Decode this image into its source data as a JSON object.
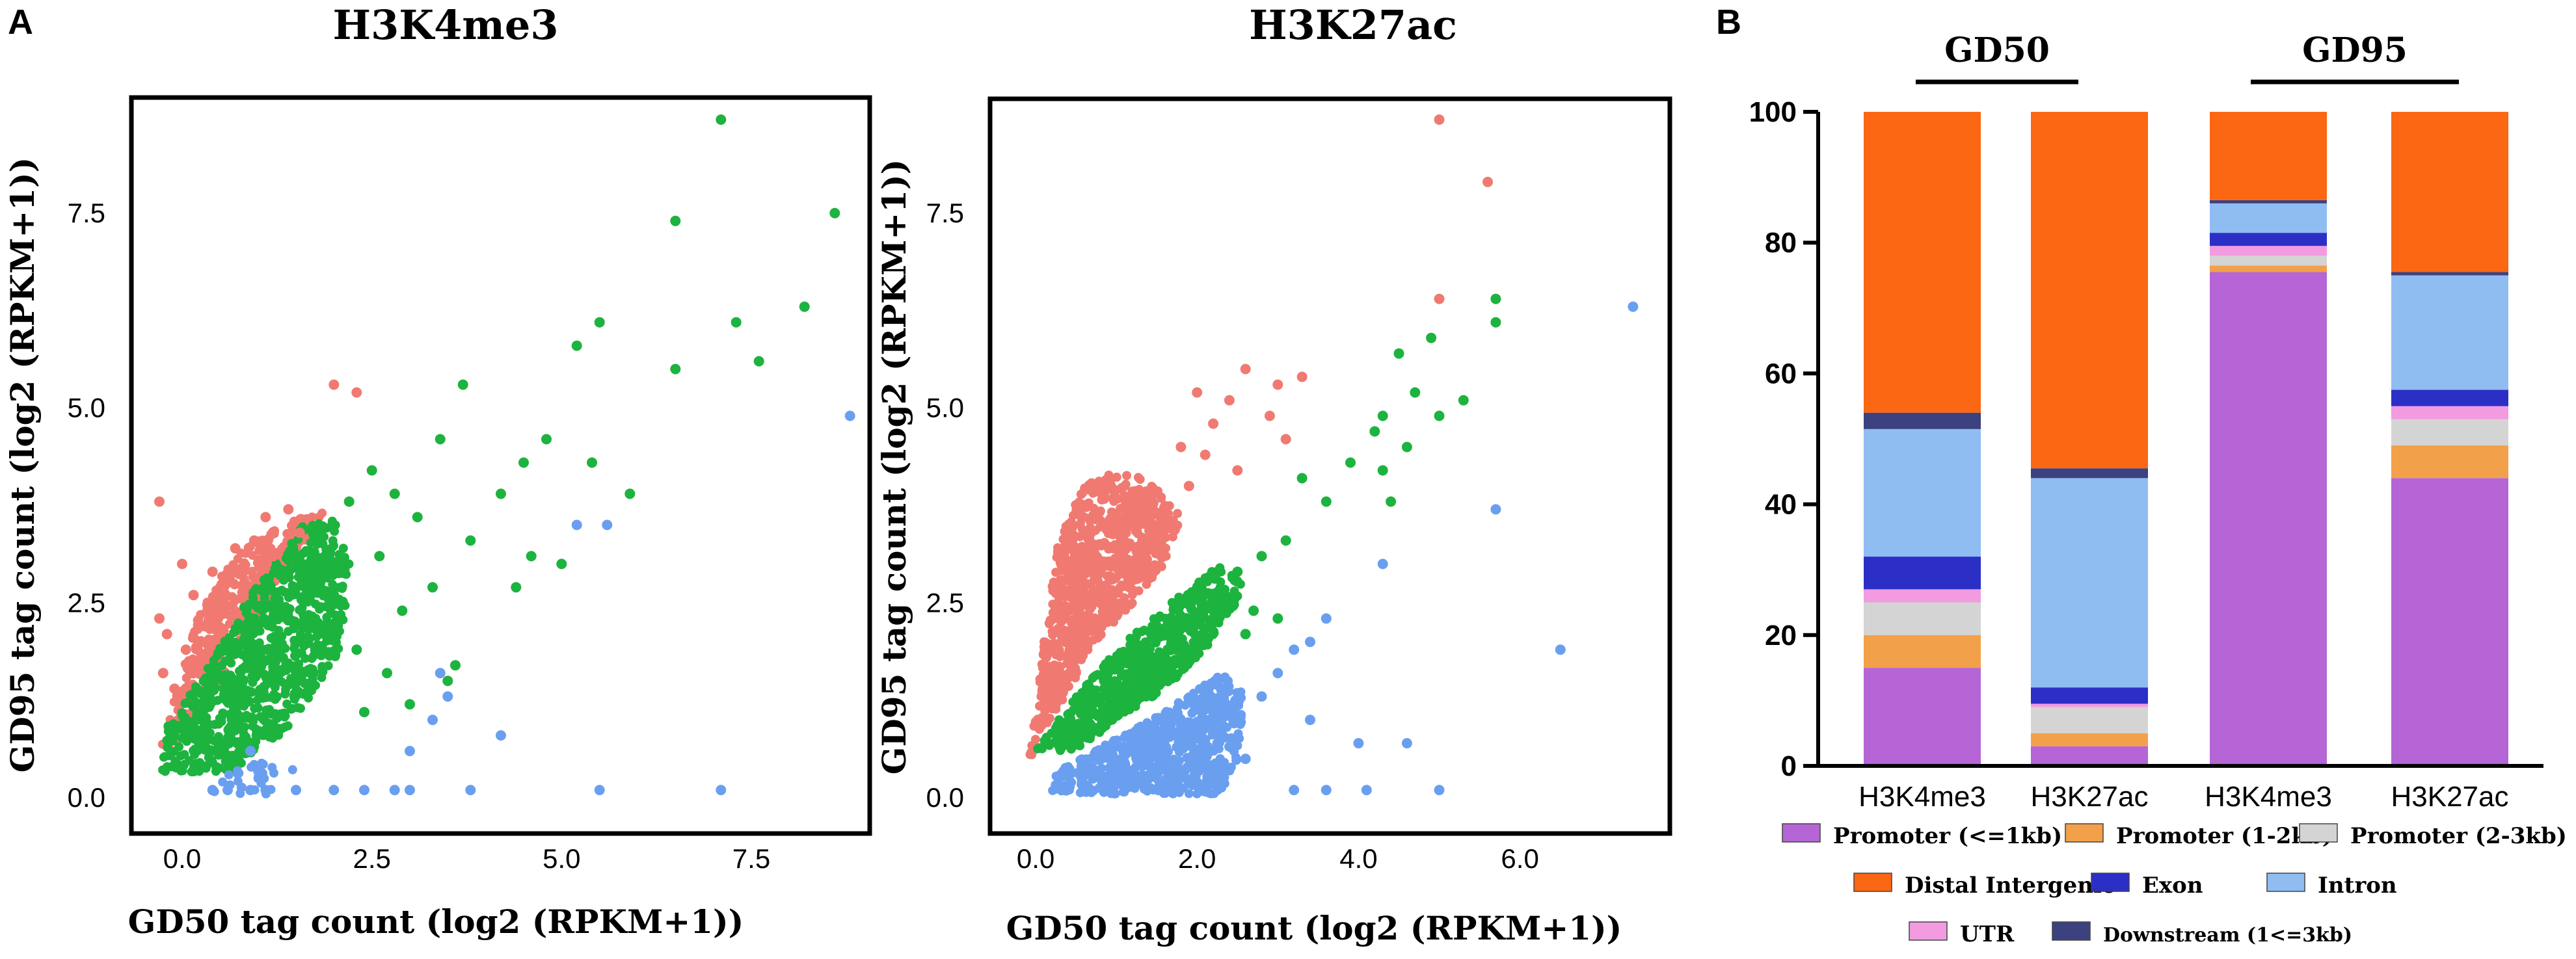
{
  "chart_data": [
    {
      "panel": "A",
      "type": "scatter",
      "title": "H3K4me3",
      "xlabel": "GD50 tag count (log2 (RPKM+1))",
      "ylabel": "GD95 tag count (log2 (RPKM+1))",
      "xlim": [
        -0.6,
        9.0
      ],
      "ylim": [
        -0.4,
        8.9
      ],
      "xticks": [
        "0.0",
        "2.5",
        "5.0",
        "7.5"
      ],
      "yticks": [
        "0.0",
        "2.5",
        "5.0",
        "7.5"
      ],
      "xtick_values": [
        0,
        2.5,
        5.0,
        7.5
      ],
      "ytick_values": [
        0,
        2.5,
        5.0,
        7.5
      ],
      "colors": {
        "up": "#f07a72",
        "similar": "#1db33f",
        "down": "#6a9ff0"
      },
      "series": [
        {
          "name": "up",
          "color": "#f07a72",
          "points": [
            [
              -0.3,
              3.8
            ],
            [
              -0.3,
              2.3
            ],
            [
              -0.25,
              1.6
            ],
            [
              -0.2,
              2.1
            ],
            [
              0,
              3.0
            ],
            [
              0.4,
              2.9
            ],
            [
              0.7,
              3.2
            ],
            [
              1.1,
              3.6
            ],
            [
              1.4,
              3.7
            ],
            [
              2.0,
              5.3
            ],
            [
              2.3,
              5.2
            ],
            [
              0.15,
              2.6
            ],
            [
              0.3,
              2.2
            ],
            [
              0.55,
              2.6
            ],
            [
              0.8,
              2.9
            ],
            [
              0.95,
              3.3
            ],
            [
              -0.1,
              1.4
            ],
            [
              0.05,
              1.9
            ],
            [
              1.2,
              3.1
            ],
            [
              1.55,
              3.4
            ]
          ]
        },
        {
          "name": "similar",
          "color": "#1db33f",
          "points": [
            [
              7.1,
              8.7
            ],
            [
              8.6,
              7.5
            ],
            [
              6.5,
              7.4
            ],
            [
              8.2,
              6.3
            ],
            [
              7.3,
              6.1
            ],
            [
              7.6,
              5.6
            ],
            [
              6.5,
              5.5
            ],
            [
              5.5,
              6.1
            ],
            [
              5.2,
              5.8
            ],
            [
              3.7,
              5.3
            ],
            [
              4.8,
              4.6
            ],
            [
              5.4,
              4.3
            ],
            [
              5.9,
              3.9
            ],
            [
              4.5,
              4.3
            ],
            [
              3.4,
              4.6
            ],
            [
              2.5,
              4.2
            ],
            [
              2.8,
              3.9
            ],
            [
              2.2,
              3.8
            ],
            [
              3.1,
              3.6
            ],
            [
              4.2,
              3.9
            ],
            [
              3.8,
              3.3
            ],
            [
              2.6,
              3.1
            ],
            [
              3.3,
              2.7
            ],
            [
              4.6,
              3.1
            ],
            [
              2.9,
              2.4
            ],
            [
              2.0,
              2.6
            ],
            [
              2.3,
              1.9
            ],
            [
              1.9,
              2.2
            ],
            [
              3.5,
              1.5
            ],
            [
              3.0,
              1.2
            ],
            [
              2.7,
              1.6
            ],
            [
              3.6,
              1.7
            ],
            [
              4.4,
              2.7
            ],
            [
              5.0,
              3.0
            ],
            [
              2.4,
              1.1
            ]
          ]
        },
        {
          "name": "down",
          "color": "#6a9ff0",
          "points": [
            [
              8.8,
              4.9
            ],
            [
              5.6,
              3.5
            ],
            [
              5.2,
              3.5
            ],
            [
              3.4,
              1.6
            ],
            [
              3.5,
              1.3
            ],
            [
              3.3,
              1.0
            ],
            [
              4.2,
              0.8
            ],
            [
              3.0,
              0.6
            ],
            [
              0.9,
              0.6
            ],
            [
              1.0,
              0.35
            ],
            [
              0.4,
              0.1
            ],
            [
              0.6,
              0.1
            ],
            [
              0.9,
              0.1
            ],
            [
              1.1,
              0.1
            ],
            [
              1.5,
              0.1
            ],
            [
              2.0,
              0.1
            ],
            [
              2.4,
              0.1
            ],
            [
              2.8,
              0.1
            ],
            [
              3.0,
              0.1
            ],
            [
              3.8,
              0.1
            ],
            [
              5.5,
              0.1
            ],
            [
              7.1,
              0.1
            ]
          ]
        }
      ],
      "dense_regions": [
        {
          "series": "up",
          "polygon": [
            [
              -0.3,
              0.55
            ],
            [
              0.2,
              2.3
            ],
            [
              0.6,
              3.0
            ],
            [
              1.1,
              3.4
            ],
            [
              1.6,
              3.6
            ],
            [
              1.9,
              3.7
            ],
            [
              1.1,
              2.5
            ],
            [
              0.5,
              1.5
            ],
            [
              0,
              0.7
            ]
          ],
          "count": 420
        },
        {
          "series": "similar",
          "polygon": [
            [
              -0.3,
              0.35
            ],
            [
              0,
              0.3
            ],
            [
              0.7,
              0.35
            ],
            [
              1.4,
              0.9
            ],
            [
              2.1,
              1.9
            ],
            [
              2.2,
              3.0
            ],
            [
              2.0,
              3.6
            ],
            [
              1.6,
              3.5
            ],
            [
              0.9,
              2.6
            ],
            [
              0.3,
              1.6
            ],
            [
              -0.2,
              0.9
            ]
          ],
          "count": 900
        },
        {
          "series": "down",
          "polygon": [
            [
              0.4,
              0.05
            ],
            [
              1.2,
              0.05
            ],
            [
              1.5,
              0.4
            ],
            [
              1.0,
              0.45
            ],
            [
              0.6,
              0.3
            ]
          ],
          "count": 30
        }
      ]
    },
    {
      "panel": "A",
      "type": "scatter",
      "title": "H3K27ac",
      "xlabel": "GD50 tag count (log2 (RPKM+1))",
      "ylabel": "GD95 tag count (log2 (RPKM+1))",
      "xlim": [
        -0.5,
        7.8
      ],
      "ylim": [
        -0.4,
        8.9
      ],
      "xticks": [
        "0.0",
        "2.0",
        "4.0",
        "6.0"
      ],
      "yticks": [
        "0.0",
        "2.5",
        "5.0",
        "7.5"
      ],
      "xtick_values": [
        0,
        2.0,
        4.0,
        6.0
      ],
      "ytick_values": [
        0,
        2.5,
        5.0,
        7.5
      ],
      "colors": {
        "up": "#f07a72",
        "similar": "#1db33f",
        "down": "#6a9ff0"
      },
      "series": [
        {
          "name": "up",
          "color": "#f07a72",
          "points": [
            [
              5.0,
              8.7
            ],
            [
              5.6,
              7.9
            ],
            [
              5.0,
              6.4
            ],
            [
              2.6,
              5.5
            ],
            [
              3.0,
              5.3
            ],
            [
              3.3,
              5.4
            ],
            [
              2.4,
              5.1
            ],
            [
              2.9,
              4.9
            ],
            [
              2.2,
              4.8
            ],
            [
              3.1,
              4.6
            ],
            [
              2.1,
              4.4
            ],
            [
              1.8,
              4.5
            ],
            [
              2.5,
              4.2
            ],
            [
              1.9,
              4.0
            ],
            [
              2.0,
              5.2
            ]
          ]
        },
        {
          "name": "similar",
          "color": "#1db33f",
          "points": [
            [
              5.7,
              6.4
            ],
            [
              5.7,
              6.1
            ],
            [
              4.9,
              5.9
            ],
            [
              4.5,
              5.7
            ],
            [
              4.7,
              5.2
            ],
            [
              5.3,
              5.1
            ],
            [
              5.0,
              4.9
            ],
            [
              4.3,
              4.9
            ],
            [
              4.2,
              4.7
            ],
            [
              4.6,
              4.5
            ],
            [
              4.3,
              4.2
            ],
            [
              4.4,
              3.8
            ],
            [
              3.3,
              4.1
            ],
            [
              3.6,
              3.8
            ],
            [
              3.9,
              4.3
            ],
            [
              3.1,
              3.3
            ],
            [
              2.8,
              3.1
            ],
            [
              2.5,
              2.9
            ],
            [
              2.7,
              2.4
            ],
            [
              2.3,
              2.5
            ],
            [
              2.6,
              2.1
            ],
            [
              3.0,
              2.3
            ]
          ]
        },
        {
          "name": "down",
          "color": "#6a9ff0",
          "points": [
            [
              7.4,
              6.3
            ],
            [
              5.7,
              3.7
            ],
            [
              4.3,
              3.0
            ],
            [
              6.5,
              1.9
            ],
            [
              3.6,
              2.3
            ],
            [
              3.4,
              2.0
            ],
            [
              3.2,
              1.9
            ],
            [
              3.0,
              1.6
            ],
            [
              2.8,
              1.3
            ],
            [
              3.4,
              1.0
            ],
            [
              4.0,
              0.7
            ],
            [
              4.1,
              0.1
            ],
            [
              4.6,
              0.7
            ],
            [
              5.0,
              0.1
            ],
            [
              3.6,
              0.1
            ],
            [
              3.2,
              0.1
            ],
            [
              2.6,
              0.5
            ],
            [
              2.2,
              0.3
            ],
            [
              1.8,
              0.9
            ]
          ]
        }
      ],
      "dense_regions": [
        {
          "series": "up",
          "polygon": [
            [
              -0.1,
              0.4
            ],
            [
              0.1,
              2.0
            ],
            [
              0.3,
              3.4
            ],
            [
              0.6,
              4.0
            ],
            [
              1.0,
              4.2
            ],
            [
              1.4,
              4.1
            ],
            [
              1.8,
              3.6
            ],
            [
              1.6,
              3.0
            ],
            [
              1.2,
              2.5
            ],
            [
              0.7,
              1.9
            ],
            [
              0.3,
              1.2
            ]
          ],
          "count": 900
        },
        {
          "series": "similar",
          "polygon": [
            [
              0.0,
              0.6
            ],
            [
              0.5,
              1.3
            ],
            [
              1.1,
              2.0
            ],
            [
              1.8,
              2.6
            ],
            [
              2.3,
              3.0
            ],
            [
              2.6,
              2.7
            ],
            [
              2.2,
              2.0
            ],
            [
              1.6,
              1.4
            ],
            [
              1.0,
              1.0
            ],
            [
              0.5,
              0.6
            ]
          ],
          "count": 650
        },
        {
          "series": "down",
          "polygon": [
            [
              0.1,
              0.05
            ],
            [
              2.3,
              0.05
            ],
            [
              2.5,
              0.5
            ],
            [
              2.6,
              1.3
            ],
            [
              2.3,
              1.6
            ],
            [
              1.6,
              1.1
            ],
            [
              0.9,
              0.7
            ],
            [
              0.3,
              0.35
            ]
          ],
          "count": 700
        }
      ]
    },
    {
      "panel": "B",
      "type": "bar",
      "stacked": true,
      "ylim": [
        0,
        100
      ],
      "yticks": [
        "0",
        "20",
        "40",
        "60",
        "80",
        "100"
      ],
      "ytick_values": [
        0,
        20,
        40,
        60,
        80,
        100
      ],
      "categories": [
        "H3K4me3",
        "H3K27ac",
        "H3K4me3",
        "H3K27ac"
      ],
      "groups": [
        {
          "label": "GD50",
          "bars": [
            0,
            1
          ]
        },
        {
          "label": "GD95",
          "bars": [
            2,
            3
          ]
        }
      ],
      "series": [
        {
          "name": "Promoter (<=1kb)",
          "color": "#b565d6",
          "values": [
            15,
            3,
            75.5,
            44
          ]
        },
        {
          "name": "Promoter (1-2kb)",
          "color": "#f3a04a",
          "values": [
            5,
            2,
            1,
            5
          ]
        },
        {
          "name": "Promoter (2-3kb)",
          "color": "#d4d4d4",
          "values": [
            5,
            4,
            1.5,
            4
          ]
        },
        {
          "name": "UTR",
          "color": "#f29be0",
          "values": [
            2,
            0.5,
            1.5,
            2
          ]
        },
        {
          "name": "Exon",
          "color": "#2c2fc6",
          "values": [
            5,
            2.5,
            2,
            2.5
          ]
        },
        {
          "name": "Intron",
          "color": "#8fbdf2",
          "values": [
            19.5,
            32,
            4.5,
            17.5
          ]
        },
        {
          "name": "Downstream (1<=3kb)",
          "color": "#3c4280",
          "values": [
            2.5,
            1.5,
            0.5,
            0.5
          ]
        },
        {
          "name": "Distal Intergenic",
          "color": "#fb6712",
          "values": [
            46,
            54.5,
            13.5,
            24.5
          ]
        }
      ],
      "legend": [
        [
          "Promoter (<=1kb)",
          "Promoter (1-2kb)",
          "Promoter (2-3kb)"
        ],
        [
          "Distal Intergenic",
          "Exon",
          "Intron"
        ],
        [
          "UTR",
          "Downstream (1<=3kb)"
        ]
      ]
    }
  ],
  "labels": {
    "panel_a": "A",
    "panel_b": "B"
  }
}
